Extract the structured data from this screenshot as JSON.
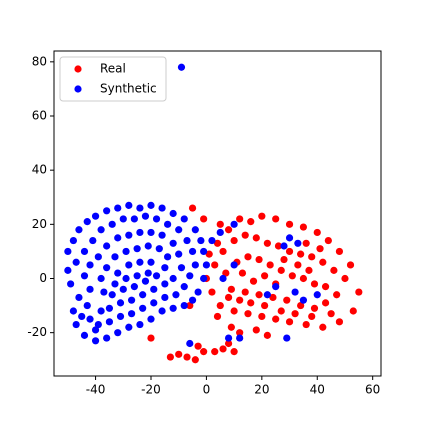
{
  "chart_data": {
    "type": "scatter",
    "legend": "upper left",
    "xlim": [
      -55,
      63
    ],
    "ylim": [
      -36,
      84
    ],
    "xticks": [
      -40,
      -20,
      0,
      20,
      40,
      60
    ],
    "yticks": [
      -20,
      0,
      20,
      40,
      60,
      80
    ],
    "series": [
      {
        "name": "Real",
        "color": "#ff0000",
        "x": [
          5,
          8,
          12,
          16,
          20,
          25,
          30,
          35,
          40,
          44,
          48,
          52,
          55,
          53,
          48,
          42,
          36,
          30,
          25,
          20,
          15,
          10,
          5,
          2,
          0,
          3,
          6,
          10,
          14,
          18,
          22,
          26,
          30,
          34,
          38,
          42,
          46,
          50,
          47,
          43,
          39,
          34,
          29,
          24,
          19,
          14,
          9,
          7,
          11,
          15,
          19,
          23,
          27,
          31,
          35,
          39,
          43,
          45,
          38,
          32,
          27,
          21,
          16,
          12,
          8,
          4,
          9,
          12,
          18,
          22,
          4,
          1,
          13,
          17,
          21,
          25,
          28,
          33,
          37,
          41,
          36,
          -10,
          -7,
          -4,
          -1,
          3,
          6,
          10,
          8,
          -13,
          -3,
          -5,
          -1,
          -20,
          -6
        ],
        "values": [
          20,
          18,
          22,
          21,
          23,
          22,
          20,
          19,
          17,
          14,
          10,
          5,
          -5,
          -12,
          -16,
          -18,
          -17,
          -16,
          -15,
          -14,
          -13,
          -12,
          -10,
          -5,
          0,
          5,
          10,
          14,
          16,
          15,
          13,
          12,
          10,
          9,
          8,
          6,
          3,
          0,
          -6,
          -9,
          -11,
          -10,
          -8,
          -7,
          -6,
          -5,
          -4,
          2,
          6,
          8,
          7,
          5,
          3,
          1,
          0,
          -2,
          -3,
          -13,
          -14,
          -13,
          -12,
          -10,
          -9,
          -8,
          -7,
          -14,
          -18,
          -20,
          -19,
          -21,
          13,
          9,
          2,
          -1,
          1,
          -2,
          7,
          5,
          3,
          11,
          13,
          -28,
          -29,
          -30,
          -27,
          -27,
          -26,
          -27,
          -24,
          -29,
          -25,
          26,
          22,
          -22,
          -10
        ]
      },
      {
        "name": "Synthetic",
        "color": "#0000ff",
        "x": [
          -50,
          -48,
          -46,
          -43,
          -40,
          -36,
          -32,
          -28,
          -24,
          -20,
          -16,
          -12,
          -8,
          -4,
          -2,
          -1,
          0,
          -1,
          -3,
          -5,
          -8,
          -12,
          -16,
          -20,
          -24,
          -28,
          -32,
          -36,
          -40,
          -44,
          -47,
          -48,
          -46,
          -49,
          -50,
          -47,
          -44,
          -41,
          -38,
          -34,
          -30,
          -26,
          -22,
          -18,
          -14,
          -10,
          -7,
          -5,
          -4,
          -6,
          -8,
          -11,
          -15,
          -19,
          -23,
          -27,
          -31,
          -35,
          -39,
          -42,
          -43,
          -42,
          -44,
          -42,
          -39,
          -36,
          -32,
          -28,
          -24,
          -20,
          -16,
          -12,
          -10,
          -9,
          -12,
          -15,
          -19,
          -23,
          -27,
          -31,
          -35,
          -38,
          -37,
          -38,
          -36,
          -33,
          -29,
          -25,
          -21,
          -17,
          -14,
          -15,
          -18,
          -22,
          -26,
          -30,
          -33,
          -32,
          -28,
          -24,
          -20,
          -21,
          -25,
          -29,
          -34,
          -40,
          -45,
          2,
          5,
          10,
          30,
          28,
          35,
          32,
          25,
          12,
          8,
          -6,
          29,
          40,
          -9,
          6,
          10,
          33,
          22
        ],
        "values": [
          10,
          14,
          18,
          21,
          23,
          25,
          26,
          27,
          26,
          27,
          26,
          24,
          22,
          18,
          14,
          10,
          5,
          0,
          -5,
          -8,
          -10,
          -11,
          -12,
          -15,
          -17,
          -18,
          -20,
          -22,
          -23,
          -21,
          -17,
          -12,
          -7,
          -2,
          3,
          6,
          10,
          14,
          18,
          20,
          22,
          22,
          23,
          22,
          20,
          18,
          14,
          10,
          5,
          1,
          -3,
          -6,
          -7,
          -9,
          -11,
          -13,
          -14,
          -16,
          -17,
          -15,
          -10,
          -4,
          1,
          5,
          8,
          12,
          15,
          16,
          17,
          17,
          16,
          13,
          9,
          4,
          0,
          -2,
          -4,
          -6,
          -8,
          -9,
          -11,
          -12,
          -5,
          0,
          4,
          8,
          10,
          11,
          12,
          11,
          8,
          4,
          1,
          -1,
          -3,
          -4,
          -2,
          2,
          5,
          6,
          6,
          2,
          1,
          0,
          -6,
          -19,
          -14,
          14,
          17,
          20,
          15,
          12,
          -8,
          -5,
          -3,
          -22,
          -22,
          -24,
          -22,
          -6,
          78,
          0,
          5,
          13,
          -6
        ]
      }
    ]
  }
}
